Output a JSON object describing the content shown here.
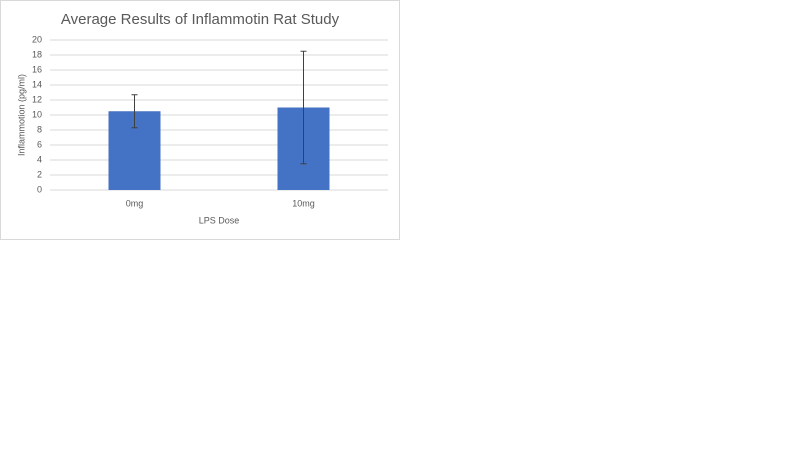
{
  "chart_data": {
    "type": "bar",
    "title": "Average Results of Inflammotin Rat Study",
    "x_label": "LPS Dose",
    "y_label": "Inflammotion (pg/ml)",
    "categories": [
      "0mg",
      "10mg"
    ],
    "values": [
      10.5,
      11
    ],
    "errors": [
      2.2,
      7.5
    ],
    "color": "#4472c4",
    "ylim": [
      0,
      20
    ],
    "yticks": [
      0,
      2,
      4,
      6,
      8,
      10,
      12,
      14,
      16,
      18,
      20
    ],
    "grid": true
  }
}
